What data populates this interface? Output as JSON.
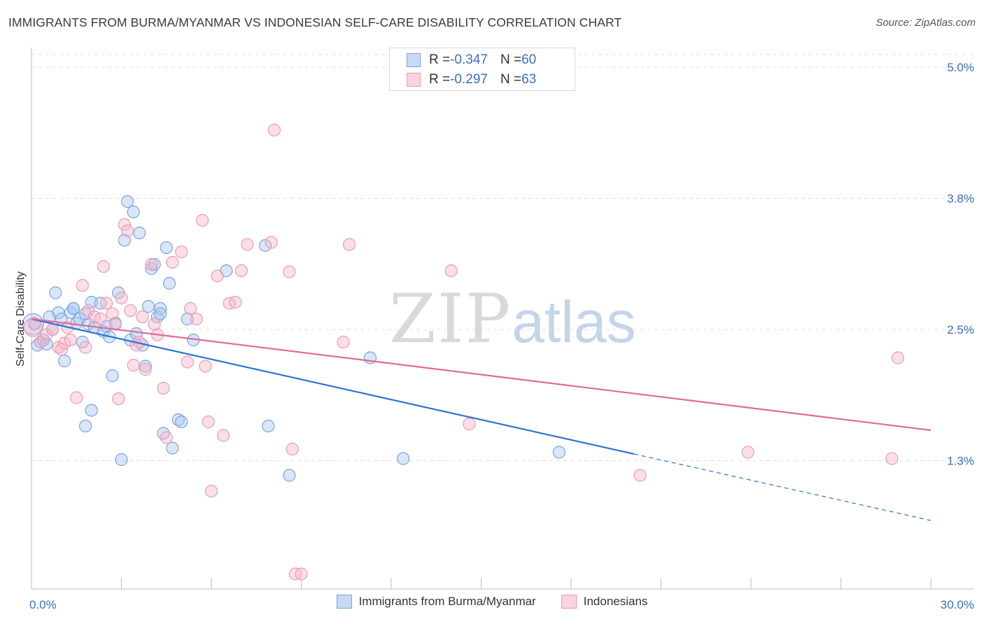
{
  "title": "IMMIGRANTS FROM BURMA/MYANMAR VS INDONESIAN SELF-CARE DISABILITY CORRELATION CHART",
  "source": "Source: ZipAtlas.com",
  "watermark": {
    "zip": "ZIP",
    "atlas": "atlas"
  },
  "colors": {
    "blue_fill": "#a9c7f0",
    "blue_stroke": "#7ba4dc",
    "blue_line": "#2e72d2",
    "pink_fill": "#f6b9cb",
    "pink_stroke": "#ec9ab3",
    "pink_line": "#e0699a",
    "axis_text": "#3a6fc2",
    "grid": "#dddddd"
  },
  "stats": {
    "rows": [
      {
        "r_label": "R = ",
        "r_value": "-0.347",
        "n_label": "N = ",
        "n_value": "60"
      },
      {
        "r_label": "R = ",
        "r_value": "-0.297",
        "n_label": "N = ",
        "n_value": "63"
      }
    ]
  },
  "legend": {
    "series1": "Immigrants from Burma/Myanmar",
    "series2": "Indonesians"
  },
  "chart_data": {
    "type": "scatter",
    "xlabel": "",
    "ylabel": "Self-Care Disability",
    "xlim": [
      0,
      30
    ],
    "ylim": [
      0,
      5.2
    ],
    "x_ticks": [
      {
        "value": 0,
        "label": "0.0%"
      },
      {
        "value": 30,
        "label": "30.0%"
      }
    ],
    "y_ticks": [
      {
        "value": 1.25,
        "label": "1.3%"
      },
      {
        "value": 2.5,
        "label": "2.5%"
      },
      {
        "value": 3.75,
        "label": "3.8%"
      },
      {
        "value": 5.0,
        "label": "5.0%"
      }
    ],
    "grid": true,
    "series": [
      {
        "name": "Immigrants from Burma/Myanmar",
        "color": "blue",
        "trend": {
          "x_start": 0,
          "y_start": 2.6,
          "x_end": 30,
          "y_end": 0.68,
          "solid_until_x": 20.1
        },
        "points": [
          [
            0.1,
            2.55
          ],
          [
            0.2,
            2.35
          ],
          [
            0.3,
            2.38
          ],
          [
            0.4,
            2.4
          ],
          [
            0.5,
            2.36
          ],
          [
            0.6,
            2.62
          ],
          [
            0.7,
            2.5
          ],
          [
            0.8,
            2.85
          ],
          [
            0.9,
            2.66
          ],
          [
            1.0,
            2.6
          ],
          [
            1.1,
            2.2
          ],
          [
            1.3,
            2.66
          ],
          [
            1.4,
            2.7
          ],
          [
            1.5,
            2.56
          ],
          [
            1.6,
            2.6
          ],
          [
            1.7,
            2.38
          ],
          [
            1.8,
            2.65
          ],
          [
            1.9,
            2.55
          ],
          [
            2.0,
            2.76
          ],
          [
            2.1,
            2.52
          ],
          [
            2.0,
            1.73
          ],
          [
            1.8,
            1.58
          ],
          [
            2.3,
            2.75
          ],
          [
            2.4,
            2.48
          ],
          [
            2.5,
            2.53
          ],
          [
            2.6,
            2.43
          ],
          [
            2.7,
            2.06
          ],
          [
            2.8,
            2.56
          ],
          [
            2.9,
            2.85
          ],
          [
            3.0,
            1.26
          ],
          [
            3.2,
            3.72
          ],
          [
            3.1,
            3.35
          ],
          [
            3.3,
            2.4
          ],
          [
            3.4,
            3.62
          ],
          [
            3.5,
            2.46
          ],
          [
            3.6,
            3.42
          ],
          [
            3.7,
            2.35
          ],
          [
            3.8,
            2.15
          ],
          [
            3.9,
            2.72
          ],
          [
            4.0,
            3.08
          ],
          [
            4.1,
            3.12
          ],
          [
            4.2,
            2.62
          ],
          [
            4.3,
            2.7
          ],
          [
            4.4,
            1.51
          ],
          [
            4.5,
            3.28
          ],
          [
            4.6,
            2.94
          ],
          [
            4.7,
            1.37
          ],
          [
            4.9,
            1.64
          ],
          [
            5.0,
            1.62
          ],
          [
            5.2,
            2.6
          ],
          [
            5.4,
            2.4
          ],
          [
            6.5,
            3.06
          ],
          [
            7.8,
            3.3
          ],
          [
            7.9,
            1.58
          ],
          [
            8.6,
            1.11
          ],
          [
            11.3,
            2.23
          ],
          [
            12.4,
            1.27
          ],
          [
            17.6,
            1.33
          ],
          [
            4.3,
            2.65
          ],
          [
            1.4,
            2.7
          ]
        ]
      },
      {
        "name": "Indonesians",
        "color": "pink",
        "trend": {
          "x_start": 0,
          "y_start": 2.6,
          "x_end": 30,
          "y_end": 1.54,
          "solid_until_x": 30
        },
        "points": [
          [
            0.1,
            2.56
          ],
          [
            0.3,
            2.38
          ],
          [
            0.5,
            2.45
          ],
          [
            0.7,
            2.5
          ],
          [
            0.9,
            2.33
          ],
          [
            1.0,
            2.31
          ],
          [
            1.1,
            2.37
          ],
          [
            1.2,
            2.52
          ],
          [
            1.3,
            2.4
          ],
          [
            1.5,
            1.85
          ],
          [
            1.7,
            2.92
          ],
          [
            1.8,
            2.33
          ],
          [
            1.9,
            2.68
          ],
          [
            2.1,
            2.62
          ],
          [
            2.3,
            2.6
          ],
          [
            2.4,
            3.1
          ],
          [
            2.5,
            2.75
          ],
          [
            2.7,
            2.65
          ],
          [
            2.8,
            2.55
          ],
          [
            2.9,
            1.84
          ],
          [
            3.0,
            2.8
          ],
          [
            3.1,
            3.5
          ],
          [
            3.2,
            3.44
          ],
          [
            3.3,
            2.68
          ],
          [
            3.4,
            2.16
          ],
          [
            3.5,
            2.35
          ],
          [
            3.6,
            2.38
          ],
          [
            3.7,
            2.62
          ],
          [
            3.8,
            2.12
          ],
          [
            4.0,
            3.12
          ],
          [
            4.1,
            2.55
          ],
          [
            4.2,
            2.45
          ],
          [
            4.4,
            1.94
          ],
          [
            4.5,
            1.47
          ],
          [
            4.7,
            3.14
          ],
          [
            5.0,
            3.24
          ],
          [
            5.2,
            2.19
          ],
          [
            5.3,
            2.7
          ],
          [
            5.5,
            2.6
          ],
          [
            5.7,
            3.54
          ],
          [
            5.8,
            2.15
          ],
          [
            5.9,
            1.62
          ],
          [
            6.0,
            0.96
          ],
          [
            6.2,
            3.01
          ],
          [
            6.4,
            1.49
          ],
          [
            6.6,
            2.75
          ],
          [
            6.8,
            2.76
          ],
          [
            7.0,
            3.06
          ],
          [
            7.2,
            3.31
          ],
          [
            8.0,
            3.33
          ],
          [
            8.1,
            4.4
          ],
          [
            8.6,
            3.05
          ],
          [
            8.7,
            1.36
          ],
          [
            8.8,
            0.17
          ],
          [
            9.0,
            0.17
          ],
          [
            10.4,
            2.38
          ],
          [
            10.6,
            3.31
          ],
          [
            14.0,
            3.06
          ],
          [
            14.6,
            1.6
          ],
          [
            20.3,
            1.11
          ],
          [
            23.9,
            1.33
          ],
          [
            28.7,
            1.27
          ],
          [
            28.9,
            2.23
          ]
        ]
      }
    ]
  }
}
